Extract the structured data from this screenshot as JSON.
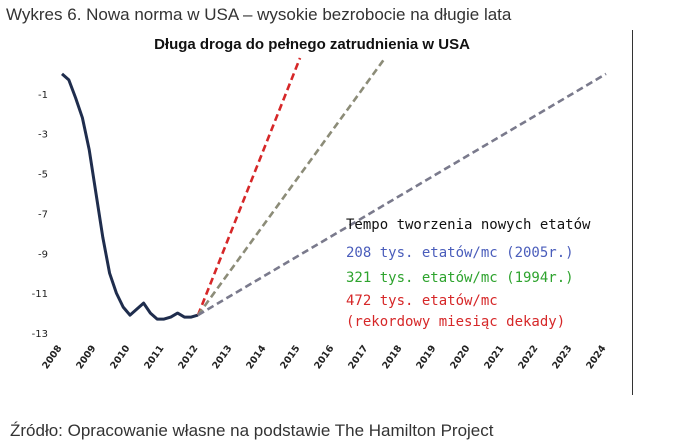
{
  "caption": "Wykres 6. Nowa norma w USA – wysokie bezrobocie na długie lata",
  "source": "Źródło: Opracowanie własne na podstawie The Hamilton Project",
  "chart_data": {
    "type": "line",
    "title": "Długa droga do pełnego zatrudnienia w USA",
    "xlabel": "",
    "ylabel": "",
    "x_ticks": [
      "2008",
      "2009",
      "2010",
      "2011",
      "2012",
      "2013",
      "2014",
      "2015",
      "2016",
      "2017",
      "2018",
      "2019",
      "2020",
      "2021",
      "2022",
      "2023",
      "2024"
    ],
    "y_ticks": [
      -1,
      -3,
      -5,
      -7,
      -9,
      -11,
      -13
    ],
    "xlim": [
      2008,
      2024
    ],
    "ylim": [
      -13,
      0.8
    ],
    "grid": false,
    "legend": "right",
    "annotation_header": "Tempo tworzenia nowych etatów",
    "series": [
      {
        "name": "actual",
        "color": "#1f2d4d",
        "style": "solid",
        "x": [
          2008.0,
          2008.2,
          2008.4,
          2008.6,
          2008.8,
          2009.0,
          2009.2,
          2009.4,
          2009.6,
          2009.8,
          2010.0,
          2010.2,
          2010.4,
          2010.6,
          2010.8,
          2011.0,
          2011.2,
          2011.4,
          2011.6,
          2011.8,
          2012.0
        ],
        "y": [
          0.0,
          -0.3,
          -1.2,
          -2.2,
          -3.8,
          -6.0,
          -8.2,
          -10.0,
          -11.0,
          -11.7,
          -12.1,
          -11.8,
          -11.5,
          -12.0,
          -12.3,
          -12.3,
          -12.2,
          -12.0,
          -12.2,
          -12.2,
          -12.1
        ]
      },
      {
        "name": "",
        "label_lines": [
          "472 tys. etatów/mc",
          "(rekordowy miesiąc dekady)"
        ],
        "color": "#d62728",
        "style": "dashed",
        "x": [
          2012.0,
          2015.0
        ],
        "y": [
          -12.1,
          0.8
        ]
      },
      {
        "name": "",
        "label_lines": [
          "321 tys. etatów/mc (1994r.)"
        ],
        "color": "#8c8c78",
        "style": "dashed",
        "x": [
          2012.0,
          2017.5
        ],
        "y": [
          -12.1,
          0.8
        ]
      },
      {
        "name": "",
        "label_lines": [
          "208 tys. etatów/mc (2005r.)"
        ],
        "color": "#7a7a8c",
        "style": "dashed",
        "x": [
          2012.0,
          2024.0
        ],
        "y": [
          -12.1,
          0.0
        ]
      }
    ],
    "label_colors": {
      "header": "#111111",
      "s208": "#4a5dbb",
      "s321": "#2ea32e",
      "s472": "#d62728"
    }
  }
}
